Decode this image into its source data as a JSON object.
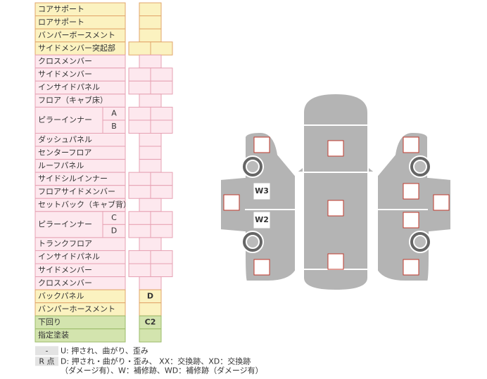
{
  "rows": [
    {
      "label": "コアサポート"
    },
    {
      "label": "ロアサポート"
    },
    {
      "label": "バンパーボースメント"
    },
    {
      "label": "サイドメンバー突起部"
    },
    {
      "label": "クロスメンバー"
    },
    {
      "label": "サイドメンバー"
    },
    {
      "label": "インサイドパネル"
    },
    {
      "label": "フロア（キャブ床）"
    },
    {
      "label": "ピラーインナー",
      "parts": [
        "A",
        "B"
      ]
    },
    {
      "label": "ダッシュパネル"
    },
    {
      "label": "センターフロア"
    },
    {
      "label": "ルーフパネル"
    },
    {
      "label": "サイドシルインナー"
    },
    {
      "label": "フロアサイドメンバー"
    },
    {
      "label": "セットバック（キャブ背）"
    },
    {
      "label": "ピラーインナー",
      "parts": [
        "C",
        "D"
      ]
    },
    {
      "label": "トランクフロア"
    },
    {
      "label": "インサイドパネル"
    },
    {
      "label": "サイドメンバー"
    },
    {
      "label": "クロスメンバー"
    },
    {
      "label": "バックパネル",
      "entry": "D"
    },
    {
      "label": "バンパーホースメント"
    },
    {
      "label": "下回り",
      "entry": "C2"
    },
    {
      "label": "指定塗装"
    }
  ],
  "legend": [
    {
      "key": "-",
      "lines": [
        "U: 押され、曲がり、歪み"
      ]
    },
    {
      "key": "R 点",
      "lines": [
        "D: 押され・曲がり・歪み、 XX：交換跡、XD：交換跡",
        "（ダメージ有）、W：補修跡、WD：補修跡（ダメージ有）"
      ]
    }
  ],
  "car_marks": [
    "W3",
    "W2"
  ]
}
